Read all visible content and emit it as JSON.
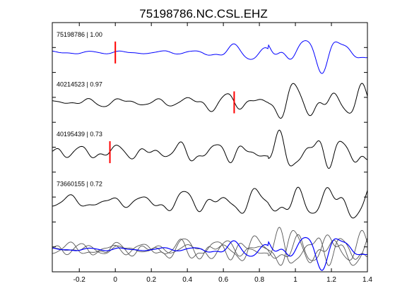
{
  "chart_data": {
    "type": "line",
    "title": "75198786.NC.CSL.EHZ",
    "xlabel": "",
    "ylabel": "",
    "xlim": [
      -0.35,
      1.4
    ],
    "x_ticks": [
      -0.2,
      0,
      0.2,
      0.4,
      0.6,
      0.8,
      1,
      1.2,
      1.4
    ],
    "x_tick_labels": [
      "-0.2",
      "0",
      "0.2",
      "0.4",
      "0.6",
      "0.8",
      "1",
      "1.2",
      "1.4"
    ],
    "grid": false,
    "colors": {
      "reference": "#0000ff",
      "trace": "#000000",
      "overlay": "#555555",
      "pick": "#ff0000",
      "axes": "#000000"
    },
    "series": [
      {
        "label": "75198786 | 1.00",
        "id": "75198786",
        "correlation": 1.0,
        "color": "#0000ff",
        "pick_time": 0.0,
        "envelope": {
          "pre": 0.1,
          "post": 0.45,
          "ramp": [
            0.35,
            0.6
          ],
          "late": 1.0
        },
        "waves": [
          {
            "f": 5.0,
            "a": 1.0,
            "p": 0.0
          },
          {
            "f": 7.5,
            "a": 0.45,
            "p": 1.2
          },
          {
            "f": 11.0,
            "a": 0.2,
            "p": 0.5
          },
          {
            "f": 3.0,
            "a": 0.3,
            "p": 2.1
          }
        ]
      },
      {
        "label": "40214523 | 0.97",
        "id": "40214523",
        "correlation": 0.97,
        "color": "#000000",
        "pick_time": 0.66,
        "envelope": {
          "pre": 0.25,
          "post": 0.55,
          "ramp": [
            0.3,
            0.55
          ],
          "late": 1.0
        },
        "waves": [
          {
            "f": 5.2,
            "a": 1.0,
            "p": 0.4
          },
          {
            "f": 8.0,
            "a": 0.5,
            "p": 2.0
          },
          {
            "f": 12.5,
            "a": 0.2,
            "p": 1.0
          },
          {
            "f": 3.2,
            "a": 0.3,
            "p": 0.3
          }
        ]
      },
      {
        "label": "40195439 | 0.73",
        "id": "40195439",
        "correlation": 0.73,
        "color": "#000000",
        "pick_time": -0.03,
        "envelope": {
          "pre": 0.4,
          "post": 0.6,
          "ramp": [
            0.2,
            0.45
          ],
          "late": 1.0
        },
        "waves": [
          {
            "f": 5.5,
            "a": 1.0,
            "p": 1.6
          },
          {
            "f": 9.0,
            "a": 0.55,
            "p": 0.2
          },
          {
            "f": 13.0,
            "a": 0.25,
            "p": 2.4
          },
          {
            "f": 3.5,
            "a": 0.3,
            "p": 1.1
          }
        ]
      },
      {
        "label": "73660155 | 0.72",
        "id": "73660155",
        "correlation": 0.72,
        "color": "#000000",
        "pick_time": null,
        "envelope": {
          "pre": 0.35,
          "post": 0.7,
          "ramp": [
            0.1,
            0.4
          ],
          "late": 1.0
        },
        "waves": [
          {
            "f": 4.8,
            "a": 1.0,
            "p": 2.8
          },
          {
            "f": 7.8,
            "a": 0.5,
            "p": 1.5
          },
          {
            "f": 12.0,
            "a": 0.25,
            "p": 0.7
          },
          {
            "f": 2.8,
            "a": 0.3,
            "p": 0.2
          }
        ]
      }
    ]
  }
}
